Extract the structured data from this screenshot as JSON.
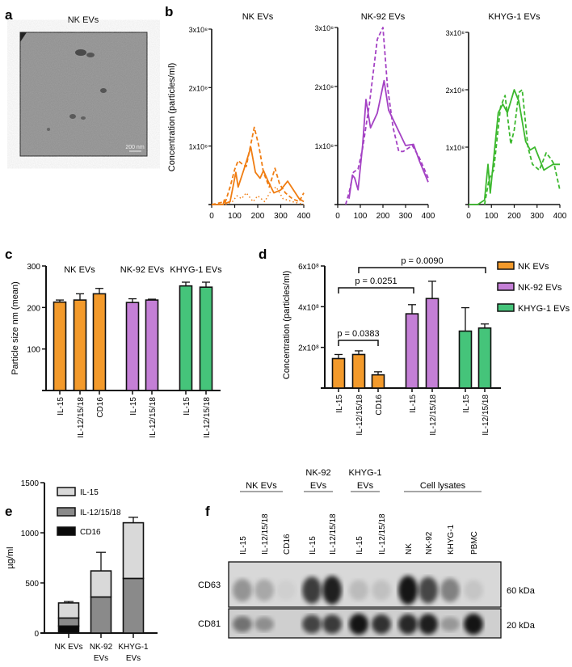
{
  "panel_labels": {
    "a": "a",
    "b": "b",
    "c": "c",
    "d": "d",
    "e": "e",
    "f": "f"
  },
  "panel_a": {
    "title": "NK EVs",
    "scale_bar": "200 nm"
  },
  "colors": {
    "NK EVs": "#f39a2b",
    "NK-92 EVs": "#c47fd6",
    "KHYG-1 EVs": "#45c47a",
    "nk_line": "#f07d12",
    "nk92_line": "#a442c4",
    "khyg_line": "#3cb82e",
    "IL-15": "#d9d9d9",
    "IL-12/15/18": "#8a8a8a",
    "CD16": "#0a0a0a"
  },
  "chart_data": [
    {
      "id": "b",
      "type": "line",
      "ylabel": "Concentration (particles/ml)",
      "subplots": [
        {
          "title": "NK EVs",
          "color_key": "nk_line",
          "xlim": [
            0,
            400
          ],
          "ylim": [
            0,
            3
          ],
          "xticks": [
            "0",
            "100",
            "200",
            "300",
            "400"
          ],
          "yticks": [
            "1x10⁸",
            "2x10⁸",
            "3x10⁸"
          ],
          "series": [
            {
              "style": "solid",
              "x": [
                0,
                50,
                55,
                60,
                80,
                105,
                115,
                140,
                170,
                190,
                210,
                225,
                245,
                270,
                300,
                330,
                350,
                380,
                400
              ],
              "y": [
                0,
                0,
                0.08,
                0.02,
                0.05,
                0.55,
                0.3,
                0.6,
                0.98,
                0.55,
                0.45,
                0.58,
                0.4,
                0.2,
                0.25,
                0.4,
                0.28,
                0.1,
                0.05
              ]
            },
            {
              "style": "dashed",
              "x": [
                0,
                60,
                80,
                100,
                115,
                130,
                150,
                185,
                205,
                225,
                250,
                275,
                295,
                320,
                350,
                380,
                400
              ],
              "y": [
                0,
                0.05,
                0.3,
                0.6,
                0.75,
                0.7,
                0.65,
                1.32,
                1.0,
                0.55,
                0.3,
                0.62,
                0.35,
                0.2,
                0.1,
                0.05,
                0.2
              ]
            },
            {
              "style": "dotted",
              "x": [
                60,
                90,
                110,
                130,
                150,
                180,
                200,
                230,
                260,
                280,
                310,
                350,
                400
              ],
              "y": [
                0,
                0.05,
                0.15,
                0.1,
                0.2,
                0.05,
                0.15,
                0.05,
                0.25,
                0.3,
                0.1,
                0.05,
                0
              ]
            }
          ]
        },
        {
          "title": "NK-92 EVs",
          "color_key": "nk92_line",
          "xlim": [
            0,
            400
          ],
          "ylim": [
            0,
            3
          ],
          "xticks": [
            "0",
            "100",
            "200",
            "300",
            "400"
          ],
          "yticks": [
            "1x10⁸",
            "2x10⁸",
            "3x10⁸"
          ],
          "series": [
            {
              "style": "solid",
              "x": [
                50,
                65,
                75,
                90,
                110,
                125,
                145,
                175,
                205,
                225,
                250,
                300,
                335,
                360,
                400
              ],
              "y": [
                0.1,
                0.5,
                0.45,
                0.25,
                1.0,
                1.78,
                1.3,
                1.55,
                2.1,
                1.6,
                1.4,
                1.0,
                1.02,
                0.75,
                0.38
              ]
            },
            {
              "style": "dashed",
              "x": [
                35,
                50,
                70,
                90,
                110,
                140,
                175,
                200,
                220,
                245,
                270,
                290,
                330,
                360,
                400
              ],
              "y": [
                0,
                0.2,
                0.55,
                0.6,
                0.95,
                1.7,
                2.8,
                3.0,
                2.0,
                1.3,
                0.9,
                0.9,
                1.0,
                0.8,
                0.45
              ]
            }
          ]
        },
        {
          "title": "KHYG-1 EVs",
          "color_key": "khyg_line",
          "xlim": [
            0,
            400
          ],
          "ylim": [
            0,
            3
          ],
          "xticks": [
            "0",
            "100",
            "200",
            "300",
            "400"
          ],
          "yticks": [
            "1x10⁸",
            "2x10⁸",
            "3x10⁸"
          ],
          "series": [
            {
              "style": "solid",
              "x": [
                0,
                40,
                70,
                85,
                95,
                110,
                130,
                150,
                170,
                200,
                220,
                250,
                270,
                290,
                310,
                330,
                370,
                400
              ],
              "y": [
                0,
                0,
                0.08,
                0.7,
                0.2,
                0.8,
                1.6,
                1.75,
                1.6,
                2.0,
                1.8,
                1.1,
                0.95,
                1.0,
                0.8,
                0.6,
                0.7,
                0.7
              ]
            },
            {
              "style": "dashed",
              "x": [
                70,
                90,
                110,
                140,
                160,
                185,
                200,
                220,
                235,
                260,
                280,
                310,
                340,
                360,
                375,
                400
              ],
              "y": [
                0,
                0.45,
                0.6,
                1.7,
                1.9,
                1.05,
                1.3,
                1.95,
                2.0,
                1.0,
                0.7,
                0.6,
                0.9,
                0.8,
                0.7,
                0.25
              ]
            }
          ]
        }
      ]
    },
    {
      "id": "c",
      "type": "bar",
      "ylabel": "Particle size nm (mean)",
      "ylim": [
        0,
        300
      ],
      "yticks": [
        "100",
        "200",
        "300"
      ],
      "groups": [
        {
          "name": "NK EVs",
          "categories": [
            "IL-15",
            "IL-12/15/18",
            "CD16"
          ],
          "values": [
            213,
            218,
            233
          ],
          "errors": [
            5,
            15,
            13
          ]
        },
        {
          "name": "NK-92 EVs",
          "categories": [
            "IL-15",
            "IL-12/15/18"
          ],
          "values": [
            212,
            218
          ],
          "errors": [
            9,
            2
          ]
        },
        {
          "name": "KHYG-1 EVs",
          "categories": [
            "IL-15",
            "IL-12/15/18"
          ],
          "values": [
            252,
            249
          ],
          "errors": [
            9,
            12
          ]
        }
      ]
    },
    {
      "id": "d",
      "type": "bar",
      "ylabel": "Concentration (particles/ml)",
      "ylim": [
        0,
        6
      ],
      "yticks": [
        "2x10⁸",
        "4x10⁸",
        "6x10⁸"
      ],
      "legend": [
        "NK EVs",
        "NK-92 EVs",
        "KHYG-1 EVs"
      ],
      "legend_position": "right",
      "groups": [
        {
          "name": "NK EVs",
          "categories": [
            "IL-15",
            "IL-12/15/18",
            "CD16"
          ],
          "values": [
            1.45,
            1.65,
            0.65
          ],
          "errors": [
            0.2,
            0.18,
            0.15
          ]
        },
        {
          "name": "NK-92 EVs",
          "categories": [
            "IL-15",
            "IL-12/15/18"
          ],
          "values": [
            3.65,
            4.4
          ],
          "errors": [
            0.45,
            0.85
          ]
        },
        {
          "name": "KHYG-1 EVs",
          "categories": [
            "IL-15",
            "IL-12/15/18"
          ],
          "values": [
            2.8,
            2.95
          ],
          "errors": [
            1.15,
            0.2
          ]
        }
      ],
      "annotations": [
        "p = 0.0383",
        "p = 0.0251",
        "p = 0.0090"
      ]
    },
    {
      "id": "e",
      "type": "bar",
      "stacked": true,
      "ylabel": "µg/ml",
      "ylim": [
        0,
        1500
      ],
      "yticks": [
        "0",
        "500",
        "1000",
        "1500"
      ],
      "categories": [
        "NK EVs",
        "NK-92\nEVs",
        "KHYG-1\nEVs"
      ],
      "legend": [
        "IL-15",
        "IL-12/15/18",
        "CD16"
      ],
      "legend_position": "top-left",
      "series": [
        {
          "name": "CD16",
          "values": [
            70,
            0,
            0
          ],
          "errors": [
            20,
            0,
            0
          ]
        },
        {
          "name": "IL-12/15/18",
          "values": [
            80,
            360,
            545
          ],
          "errors": [
            30,
            195,
            55
          ]
        },
        {
          "name": "IL-15",
          "values": [
            150,
            260,
            555
          ],
          "errors": [
            15,
            185,
            55
          ]
        }
      ]
    },
    {
      "id": "f",
      "type": "blot",
      "groups": [
        {
          "label": "NK EVs",
          "lanes": [
            "IL-15",
            "IL-12/15/18",
            "CD16"
          ]
        },
        {
          "label": "NK-92\nEVs",
          "lanes": [
            "IL-15",
            "IL-12/15/18"
          ]
        },
        {
          "label": "KHYG-1\nEVs",
          "lanes": [
            "IL-15",
            "IL-12/15/18"
          ]
        },
        {
          "label": "Cell lysates",
          "lanes": [
            "NK",
            "NK-92",
            "KHYG-1",
            "PBMC"
          ]
        }
      ],
      "rows": [
        {
          "label": "CD63",
          "mw": "60 kDa",
          "intensity": [
            0.35,
            0.25,
            0.05,
            0.8,
            0.95,
            0.15,
            0.12,
            1.0,
            0.75,
            0.45,
            0.1
          ]
        },
        {
          "label": "CD81",
          "mw": "20 kDa",
          "intensity": [
            0.5,
            0.35,
            0.0,
            0.75,
            0.8,
            1.0,
            0.85,
            0.9,
            0.95,
            0.3,
            1.0
          ]
        }
      ]
    }
  ]
}
